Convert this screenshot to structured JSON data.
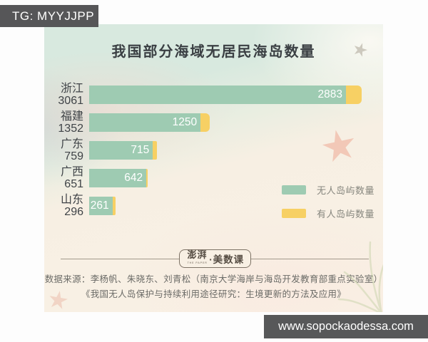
{
  "badges": {
    "tg": "TG: MYYJJPP",
    "site": "www.sopockaodessa.com"
  },
  "chart_data": {
    "type": "bar",
    "orientation": "horizontal",
    "title": "我国部分海域无居民海岛数量",
    "categories": [
      "浙江",
      "福建",
      "广东",
      "广西",
      "山东"
    ],
    "category_totals": [
      3061,
      1352,
      759,
      651,
      296
    ],
    "series": [
      {
        "name": "无人岛屿数量",
        "color": "#9ecbb2",
        "values": [
          2883,
          1250,
          715,
          642,
          261
        ]
      },
      {
        "name": "有人岛屿数量",
        "color": "#f7d064",
        "values": [
          178,
          102,
          44,
          9,
          35
        ]
      }
    ],
    "value_labels_shown": [
      "2883",
      "1250",
      "715",
      "642",
      "261"
    ],
    "xlim": [
      0,
      3100
    ],
    "grid": false,
    "legend_position": "bottom-right"
  },
  "footer": {
    "logo_brand": "澎湃",
    "logo_brand_sub": "THE PAPER",
    "logo_suffix": "·美数课",
    "source_line1": "数据来源：李杨帆、朱晓东、刘青松（南京大学海岸与海岛开发教育部重点实验室）",
    "source_line2": "《我国无人岛保护与持续利用途径研究：生境更新的方法及应用》"
  },
  "colors": {
    "uninhabited_bar": "#9ecbb2",
    "inhabited_bar": "#f7d064",
    "mint_bg": "#d8e9df",
    "cream_bg": "#f8f1e5",
    "badge_bg": "#565658"
  }
}
